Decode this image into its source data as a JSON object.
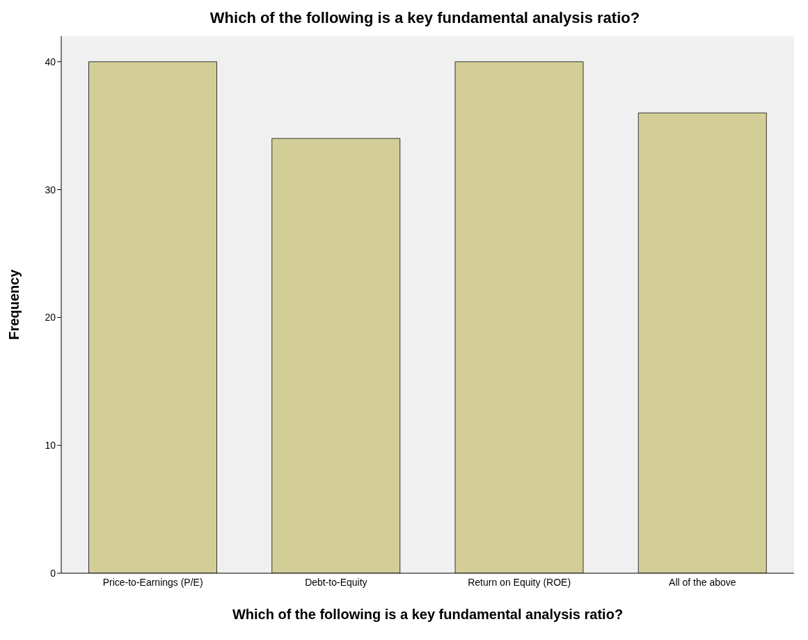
{
  "chart_data": {
    "type": "bar",
    "title": "Which of the following is a key fundamental analysis ratio?",
    "xlabel": "Which of the following is a key fundamental analysis ratio?",
    "ylabel": "Frequency",
    "categories": [
      "Price-to-Earnings (P/E)",
      "Debt-to-Equity",
      "Return on Equity (ROE)",
      "All of the above"
    ],
    "values": [
      40,
      34,
      40,
      36
    ],
    "color": "#d3ce97",
    "ylim": [
      0,
      42
    ],
    "yticks": [
      0,
      10,
      20,
      30,
      40
    ],
    "grid": false
  }
}
